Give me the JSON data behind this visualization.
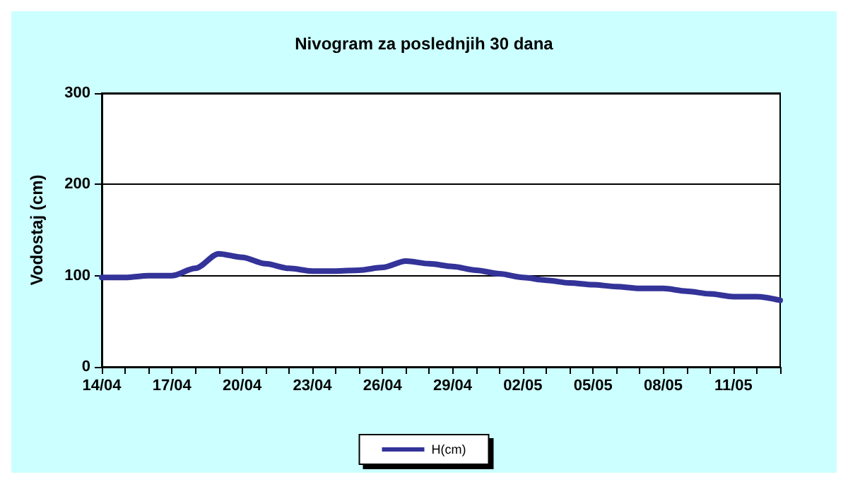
{
  "chart_data": {
    "type": "line",
    "title": "Nivogram za poslednjih 30 dana",
    "ylabel": "Vodostaj (cm)",
    "categories": [
      "14/04",
      null,
      null,
      "17/04",
      null,
      null,
      "20/04",
      null,
      null,
      "23/04",
      null,
      null,
      "26/04",
      null,
      null,
      "29/04",
      null,
      null,
      "02/05",
      null,
      null,
      "05/05",
      null,
      null,
      "08/05",
      null,
      null,
      "11/05",
      null,
      null
    ],
    "series": [
      {
        "name": "H(cm)",
        "color": "#333399",
        "values": [
          98,
          98,
          100,
          100,
          108,
          124,
          120,
          113,
          108,
          105,
          105,
          106,
          109,
          116,
          113,
          110,
          106,
          102,
          98,
          95,
          92,
          90,
          88,
          86,
          86,
          83,
          80,
          77,
          77,
          73
        ]
      }
    ],
    "ylim": [
      0,
      300
    ],
    "yticks": [
      0,
      100,
      200,
      300
    ],
    "grid": "y",
    "legend": "bottom",
    "marker": "none",
    "line_style": "solid"
  }
}
